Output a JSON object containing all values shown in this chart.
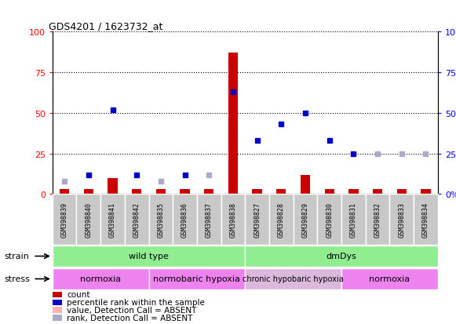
{
  "title": "GDS4201 / 1623732_at",
  "samples": [
    "GSM398839",
    "GSM398840",
    "GSM398841",
    "GSM398842",
    "GSM398835",
    "GSM398836",
    "GSM398837",
    "GSM398838",
    "GSM398827",
    "GSM398828",
    "GSM398829",
    "GSM398830",
    "GSM398831",
    "GSM398832",
    "GSM398833",
    "GSM398834"
  ],
  "count_values": [
    3,
    3,
    10,
    3,
    3,
    3,
    3,
    87,
    3,
    3,
    12,
    3,
    3,
    3,
    3,
    3
  ],
  "count_absent": [
    false,
    false,
    false,
    false,
    false,
    false,
    false,
    false,
    false,
    false,
    false,
    false,
    false,
    false,
    false,
    false
  ],
  "rank_values": [
    8,
    12,
    52,
    12,
    8,
    12,
    12,
    63,
    33,
    43,
    50,
    33,
    25,
    25,
    25,
    25
  ],
  "rank_absent": [
    true,
    false,
    false,
    false,
    true,
    false,
    true,
    false,
    false,
    false,
    false,
    false,
    false,
    true,
    true,
    true
  ],
  "strain_groups": [
    {
      "label": "wild type",
      "start": 0,
      "end": 7
    },
    {
      "label": "dmDys",
      "start": 8,
      "end": 15
    }
  ],
  "stress_groups": [
    {
      "label": "normoxia",
      "start": 0,
      "end": 3,
      "faded": false
    },
    {
      "label": "normobaric hypoxia",
      "start": 4,
      "end": 7,
      "faded": false
    },
    {
      "label": "chronic hypobaric hypoxia",
      "start": 8,
      "end": 11,
      "faded": true
    },
    {
      "label": "normoxia",
      "start": 12,
      "end": 15,
      "faded": false
    }
  ],
  "ylim": [
    0,
    100
  ],
  "yticks": [
    0,
    25,
    50,
    75,
    100
  ],
  "bar_color": "#CC0000",
  "bar_absent_color": "#FFB3B3",
  "dot_color": "#0000CC",
  "dot_absent_color": "#AAAACC",
  "strain_color": "#90EE90",
  "stress_color": "#EE82EE",
  "stress_faded_color": "#DDB8DD",
  "sample_box_color": "#C8C8C8",
  "legend_items": [
    {
      "color": "#CC0000",
      "label": "count"
    },
    {
      "color": "#0000CC",
      "label": "percentile rank within the sample"
    },
    {
      "color": "#FFB3B3",
      "label": "value, Detection Call = ABSENT"
    },
    {
      "color": "#AAAACC",
      "label": "rank, Detection Call = ABSENT"
    }
  ]
}
